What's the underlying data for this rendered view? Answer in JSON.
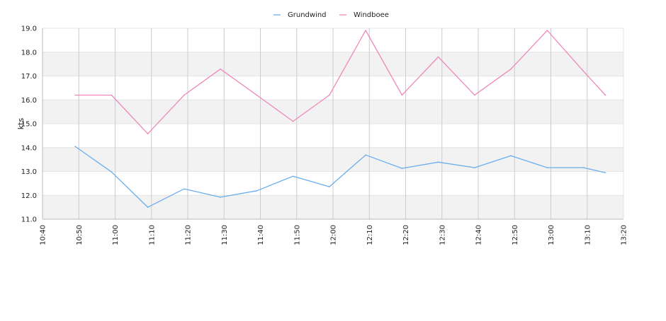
{
  "chart_data": {
    "type": "line",
    "ylabel": "kts",
    "ylim": [
      11.0,
      19.0
    ],
    "y_ticks": [
      "11.0",
      "12.0",
      "13.0",
      "14.0",
      "15.0",
      "16.0",
      "17.0",
      "18.0",
      "19.0"
    ],
    "x_ticks": [
      "10:40",
      "10:50",
      "11:00",
      "11:10",
      "11:20",
      "11:30",
      "11:40",
      "11:50",
      "12:00",
      "12:10",
      "12:20",
      "12:30",
      "12:40",
      "12:50",
      "13:00",
      "13:10",
      "13:20"
    ],
    "x_range": [
      "10:40",
      "13:20"
    ],
    "x": [
      "10:49",
      "10:59",
      "11:09",
      "11:19",
      "11:29",
      "11:39",
      "11:49",
      "11:59",
      "12:09",
      "12:19",
      "12:29",
      "12:39",
      "12:49",
      "12:59",
      "13:09",
      "13:15"
    ],
    "grid": true,
    "legend_position": "top-center",
    "series": [
      {
        "name": "Grundwind",
        "color": "#6aaeee",
        "values": [
          14.05,
          12.98,
          11.5,
          12.27,
          11.92,
          12.19,
          12.8,
          12.36,
          13.69,
          13.13,
          13.39,
          13.16,
          13.66,
          13.16,
          13.16,
          12.95
        ]
      },
      {
        "name": "Windboee",
        "color": "#ee88bb",
        "values": [
          16.2,
          16.2,
          14.58,
          16.2,
          17.29,
          16.2,
          15.1,
          16.2,
          18.91,
          16.2,
          17.8,
          16.2,
          17.29,
          18.91,
          17.2,
          16.2
        ]
      }
    ],
    "colors": {
      "band": "#f2f2f2",
      "grid": "#cccccc",
      "axis": "#bbbbbb"
    }
  }
}
